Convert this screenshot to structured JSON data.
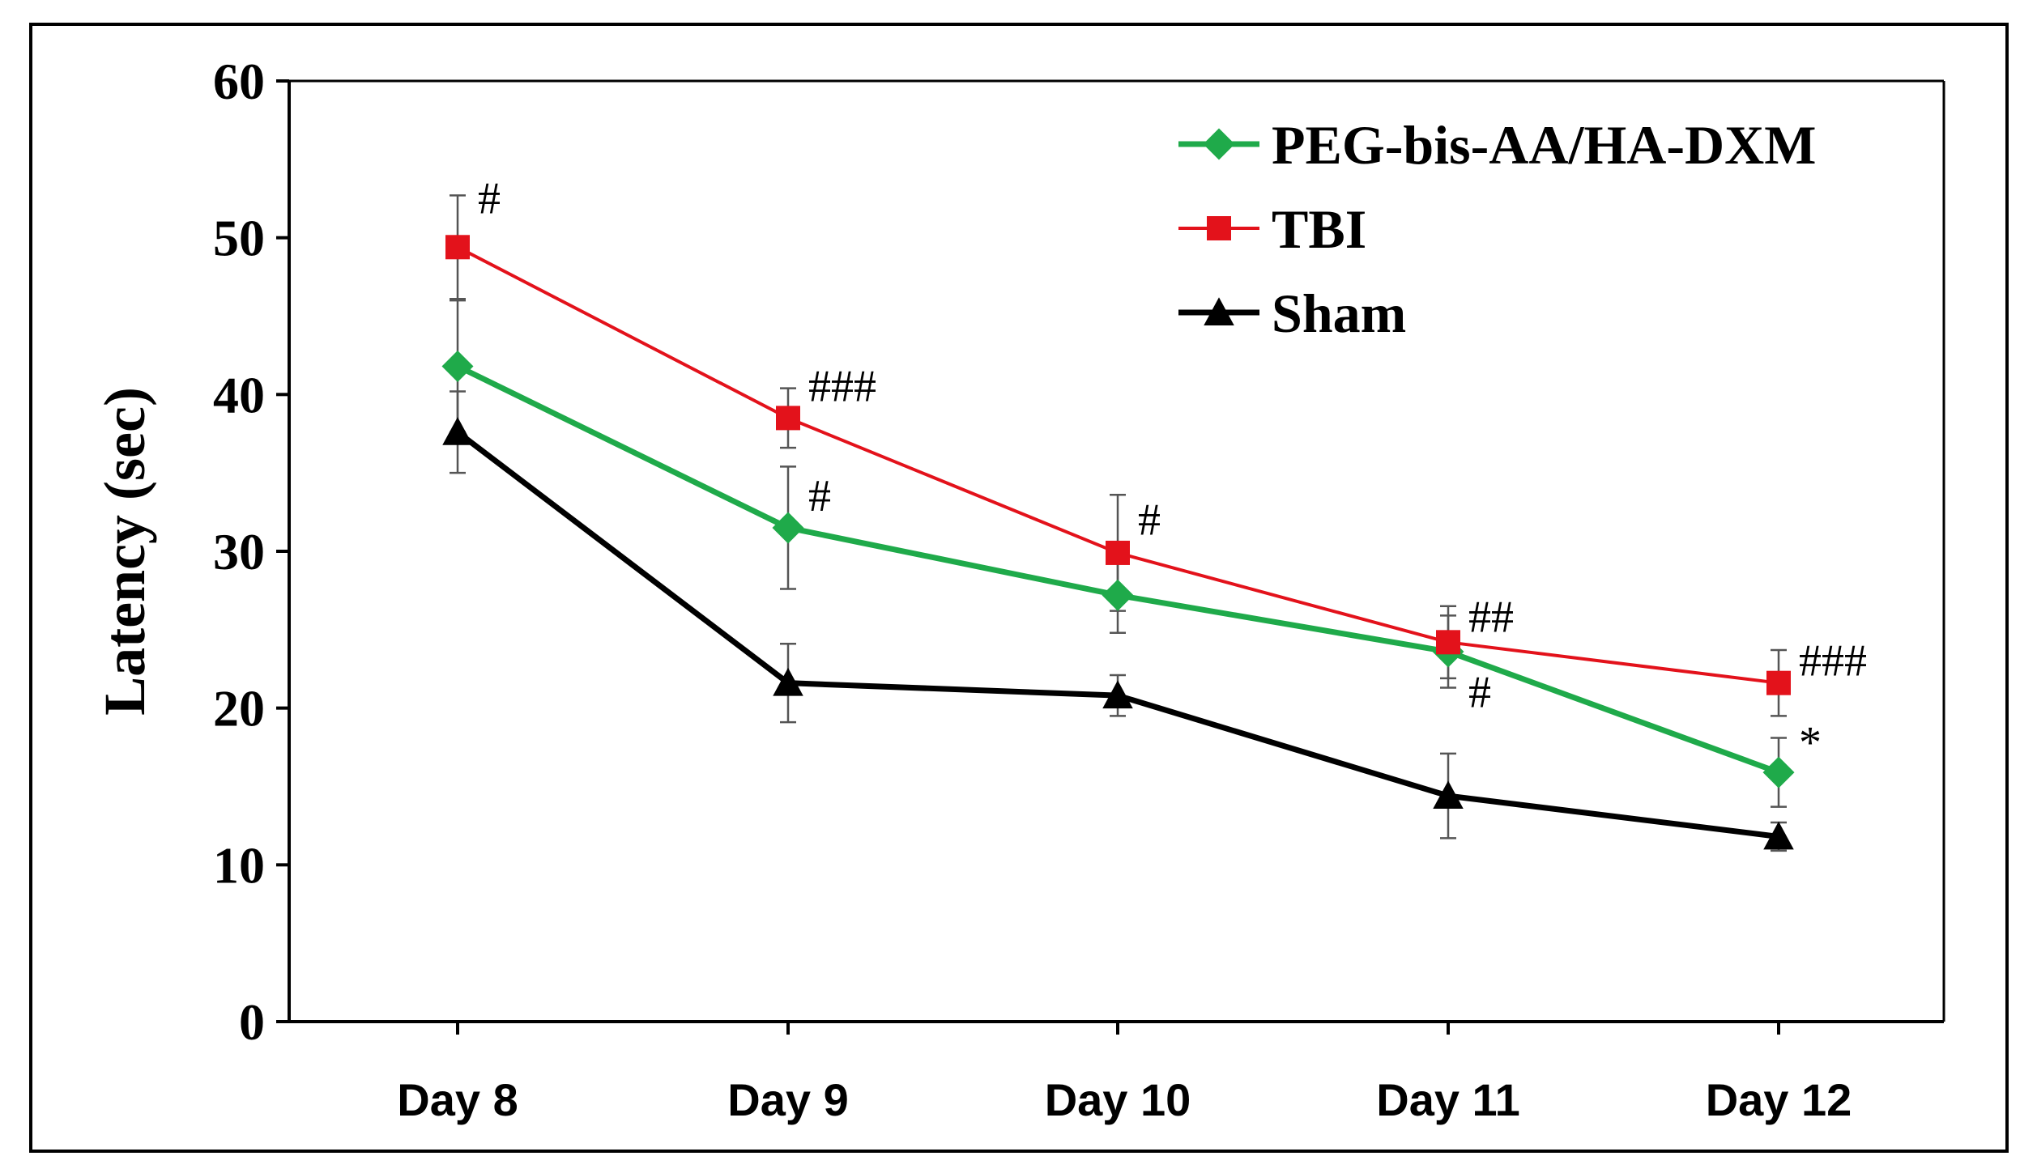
{
  "chart_data": {
    "type": "line",
    "title": "",
    "xlabel": "",
    "ylabel": "Latency (sec)",
    "categories": [
      "Day 8",
      "Day 9",
      "Day 10",
      "Day 11",
      "Day 12"
    ],
    "ylim": [
      0,
      60
    ],
    "yticks": [
      "0",
      "10",
      "20",
      "30",
      "40",
      "50",
      "60"
    ],
    "grid": false,
    "legend_position": "top-right",
    "series": [
      {
        "name": "PEG-bis-AA/HA-DXM",
        "color": "#1faa4a",
        "marker": "diamond",
        "values": [
          41.8,
          31.5,
          27.2,
          23.6,
          15.9
        ],
        "errors": [
          4.2,
          3.9,
          2.4,
          2.3,
          2.2
        ]
      },
      {
        "name": "TBI",
        "color": "#e3121b",
        "marker": "square",
        "values": [
          49.4,
          38.5,
          29.9,
          24.2,
          21.6
        ],
        "errors": [
          3.3,
          1.9,
          3.7,
          2.3,
          2.1
        ]
      },
      {
        "name": "Sham",
        "color": "#000000",
        "marker": "triangle",
        "values": [
          37.6,
          21.6,
          20.8,
          14.4,
          11.8
        ],
        "errors": [
          2.6,
          2.5,
          1.3,
          2.7,
          0.9
        ]
      }
    ],
    "annotations": [
      {
        "category": "Day 8",
        "value": 52.5,
        "text": "#"
      },
      {
        "category": "Day 9",
        "value": 40.5,
        "text": "###"
      },
      {
        "category": "Day 9",
        "value": 33.5,
        "text": "#"
      },
      {
        "category": "Day 10",
        "value": 32.0,
        "text": "#"
      },
      {
        "category": "Day 11",
        "value": 25.8,
        "text": "##"
      },
      {
        "category": "Day 11",
        "value": 21.0,
        "text": "#"
      },
      {
        "category": "Day 12",
        "value": 23.0,
        "text": "###"
      },
      {
        "category": "Day 12",
        "value": 17.8,
        "text": "*"
      }
    ]
  }
}
